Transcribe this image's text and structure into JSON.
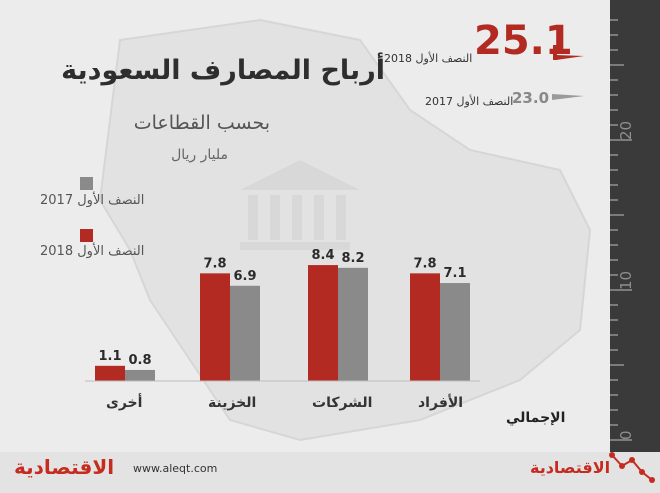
{
  "title": "أرباح المصارف السعودية",
  "subtitle": "بحسب القطاعات",
  "unit": "مليار ريال",
  "colors": {
    "h1_2018": "#b22a22",
    "h1_2017": "#8a8a8a",
    "background": "#ececec",
    "brand": "#c62b1f"
  },
  "legend": [
    {
      "label": "النصف الأول 2017",
      "color": "#8a8a8a"
    },
    {
      "label": "النصف الأول 2018",
      "color": "#b22a22"
    }
  ],
  "totals": {
    "category_label": "الإجمالي",
    "h1_2018": {
      "value": "25.1",
      "label": "النصف الأول 2018"
    },
    "h1_2017": {
      "value": "23.0",
      "label": "النصف الأول 2017"
    },
    "scale_ticks": [
      "0",
      "10",
      "20"
    ]
  },
  "chart_data": {
    "type": "bar",
    "categories": [
      "أخرى",
      "الخزينة",
      "الشركات",
      "الأفراد"
    ],
    "series": [
      {
        "name": "النصف الأول 2018",
        "values": [
          1.1,
          7.8,
          8.4,
          7.8
        ]
      },
      {
        "name": "النصف الأول 2017",
        "values": [
          0.8,
          6.9,
          8.2,
          7.1
        ]
      }
    ],
    "value_labels": {
      "h1_2018": [
        "1.1",
        "7.8",
        "8.4",
        "7.8"
      ],
      "h1_2017": [
        "0.8",
        "6.9",
        "8.2",
        "7.1"
      ]
    },
    "title": "أرباح المصارف السعودية",
    "subtitle": "بحسب القطاعات",
    "ylabel": "مليار ريال",
    "ylim": [
      0,
      10
    ],
    "grid": false,
    "legend_position": "left"
  },
  "footer": {
    "brand_left": "الاقتصادية",
    "url": "www.aleqt.com",
    "brand_right": "الاقتصادية"
  }
}
